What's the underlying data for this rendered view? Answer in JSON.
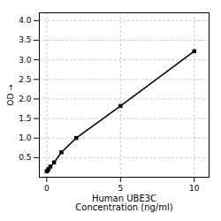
{
  "chart_data": {
    "type": "line",
    "x": [
      0.0,
      0.0625,
      0.125,
      0.25,
      0.5,
      1.0,
      2.0,
      5.0,
      10.0
    ],
    "values": [
      0.152,
      0.168,
      0.212,
      0.272,
      0.378,
      0.638,
      1.002,
      1.82,
      3.22
    ],
    "marker": "square",
    "xlabel": "Human UBE3C\nConcentration (ng/ml)",
    "ylabel": "OD",
    "xlim": [
      -0.5,
      11.0
    ],
    "ylim": [
      0.0,
      4.2
    ],
    "xticks": [
      0,
      5,
      10
    ],
    "yticks": [
      0.5,
      {
        "value": 1.0,
        "label": "1.0"
      },
      1.5,
      {
        "value": 2.0,
        "label": "2.0"
      },
      2.5,
      {
        "value": 3.0,
        "label": "3.0"
      },
      3.5,
      {
        "value": 4.0,
        "label": "4.0"
      }
    ],
    "grid": true
  }
}
